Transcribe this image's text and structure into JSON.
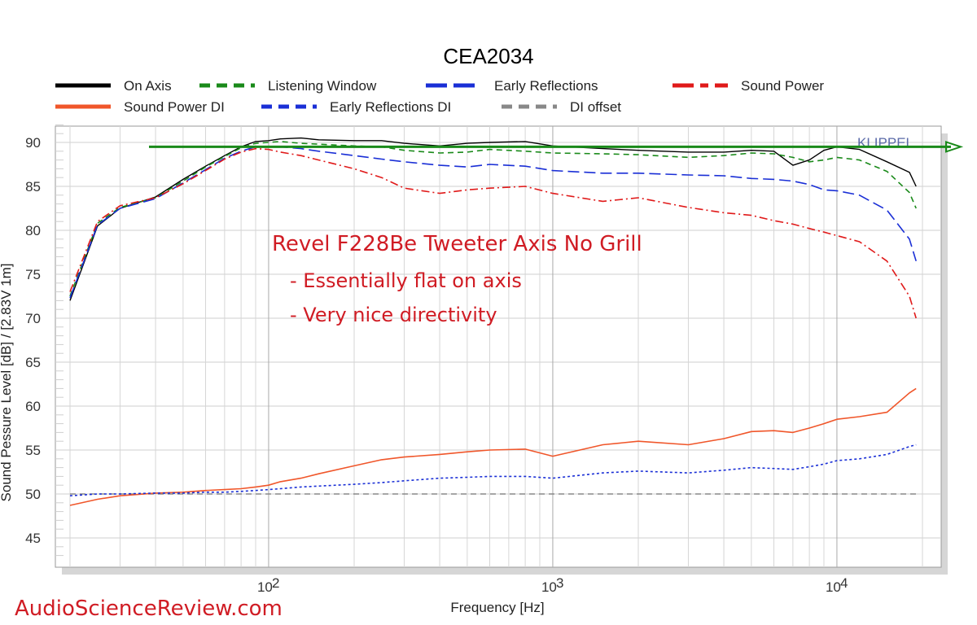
{
  "chart_data": {
    "type": "line",
    "title": "CEA2034",
    "xlabel": "Frequency [Hz]",
    "ylabel": "Sound Pessure Level [dB]  / [2.83V 1m]",
    "xscale": "log",
    "xlim": [
      20,
      20000
    ],
    "ylim": [
      42,
      92
    ],
    "y_ticks": [
      45,
      50,
      55,
      60,
      65,
      70,
      75,
      80,
      85,
      90
    ],
    "x_ticks": [
      {
        "value": 100,
        "base": "10",
        "exp": "2"
      },
      {
        "value": 1000,
        "base": "10",
        "exp": "3"
      },
      {
        "value": 10000,
        "base": "10",
        "exp": "4"
      }
    ],
    "grid": true,
    "legend_position": "top",
    "series": [
      {
        "name": "On Axis",
        "color": "#000000",
        "style": "solid",
        "x": [
          20,
          25,
          30,
          40,
          50,
          60,
          70,
          80,
          90,
          100,
          110,
          130,
          150,
          200,
          250,
          300,
          400,
          500,
          600,
          800,
          1000,
          1500,
          2000,
          3000,
          4000,
          5000,
          6000,
          7000,
          8000,
          9000,
          10000,
          12000,
          15000,
          18000,
          19000
        ],
        "y": [
          72,
          80.5,
          82.5,
          83.8,
          85.8,
          87.3,
          88.5,
          89.5,
          90.1,
          90.2,
          90.4,
          90.5,
          90.3,
          90.2,
          90.2,
          89.9,
          89.6,
          89.9,
          90.0,
          90.1,
          89.6,
          89.3,
          89.1,
          88.9,
          88.9,
          89.1,
          89.0,
          87.4,
          88.0,
          89.1,
          89.5,
          89.2,
          87.8,
          86.6,
          85
        ]
      },
      {
        "name": "Listening Window",
        "color": "#1a8a1a",
        "style": "dashed",
        "x": [
          20,
          25,
          30,
          40,
          50,
          60,
          70,
          80,
          90,
          100,
          110,
          130,
          150,
          200,
          250,
          300,
          400,
          500,
          600,
          800,
          1000,
          1500,
          2000,
          3000,
          4000,
          5000,
          6000,
          7000,
          8000,
          9000,
          10000,
          12000,
          15000,
          18000,
          19000
        ],
        "y": [
          72.5,
          80.8,
          82.6,
          83.7,
          85.6,
          87.2,
          88.4,
          89.4,
          89.9,
          90.0,
          90.1,
          89.9,
          89.8,
          89.6,
          89.5,
          89.1,
          88.8,
          88.9,
          89.2,
          89.0,
          88.8,
          88.7,
          88.6,
          88.3,
          88.5,
          88.8,
          88.7,
          88.3,
          87.8,
          88.0,
          88.3,
          88.0,
          86.7,
          84.3,
          82.5
        ]
      },
      {
        "name": "Early Reflections",
        "color": "#1a2fd6",
        "style": "longdash",
        "x": [
          20,
          25,
          30,
          40,
          50,
          60,
          70,
          80,
          90,
          100,
          110,
          130,
          150,
          200,
          250,
          300,
          400,
          500,
          600,
          800,
          1000,
          1500,
          2000,
          3000,
          4000,
          5000,
          6000,
          7000,
          8000,
          9000,
          10000,
          12000,
          15000,
          18000,
          19000
        ],
        "y": [
          72.3,
          80.6,
          82.5,
          83.6,
          85.4,
          86.9,
          88.2,
          89.0,
          89.5,
          89.5,
          89.5,
          89.3,
          89.0,
          88.5,
          88.1,
          87.8,
          87.4,
          87.2,
          87.5,
          87.3,
          86.8,
          86.5,
          86.5,
          86.3,
          86.2,
          85.9,
          85.8,
          85.6,
          85.2,
          84.6,
          84.5,
          84.0,
          82.3,
          79.0,
          76.5
        ]
      },
      {
        "name": "Sound Power",
        "color": "#e01a1a",
        "style": "dashdot",
        "x": [
          20,
          25,
          30,
          40,
          50,
          60,
          70,
          80,
          90,
          100,
          110,
          130,
          150,
          200,
          250,
          300,
          400,
          500,
          600,
          800,
          1000,
          1500,
          2000,
          3000,
          4000,
          5000,
          6000,
          7000,
          8000,
          9000,
          10000,
          12000,
          15000,
          18000,
          19000
        ],
        "y": [
          73,
          81,
          82.8,
          83.7,
          85.3,
          86.8,
          88.1,
          88.9,
          89.3,
          89.2,
          88.9,
          88.5,
          88.0,
          87.0,
          86.0,
          84.8,
          84.2,
          84.6,
          84.8,
          85.0,
          84.2,
          83.3,
          83.7,
          82.6,
          82.0,
          81.7,
          81.1,
          80.7,
          80.2,
          79.8,
          79.4,
          78.7,
          76.5,
          72.5,
          70
        ]
      },
      {
        "name": "Sound Power DI",
        "color": "#f0562a",
        "style": "solid",
        "x": [
          20,
          25,
          30,
          40,
          50,
          60,
          70,
          80,
          90,
          100,
          110,
          130,
          150,
          200,
          250,
          300,
          400,
          500,
          600,
          800,
          1000,
          1500,
          2000,
          3000,
          4000,
          5000,
          6000,
          7000,
          8000,
          9000,
          10000,
          12000,
          15000,
          18000,
          19000
        ],
        "y": [
          48.7,
          49.4,
          49.8,
          50.1,
          50.2,
          50.4,
          50.5,
          50.6,
          50.8,
          51.0,
          51.4,
          51.8,
          52.3,
          53.2,
          53.9,
          54.2,
          54.5,
          54.8,
          55.0,
          55.1,
          54.3,
          55.6,
          56.0,
          55.6,
          56.3,
          57.1,
          57.2,
          57.0,
          57.5,
          58.0,
          58.5,
          58.8,
          59.3,
          61.5,
          62
        ]
      },
      {
        "name": "Early Reflections DI",
        "color": "#1a2fd6",
        "style": "dotted",
        "x": [
          20,
          25,
          30,
          40,
          50,
          60,
          70,
          80,
          90,
          100,
          110,
          130,
          150,
          200,
          250,
          300,
          400,
          500,
          600,
          800,
          1000,
          1500,
          2000,
          3000,
          4000,
          5000,
          6000,
          7000,
          8000,
          9000,
          10000,
          12000,
          15000,
          18000,
          19000
        ],
        "y": [
          49.8,
          50.0,
          50.0,
          50.1,
          50.1,
          50.2,
          50.2,
          50.3,
          50.4,
          50.5,
          50.6,
          50.8,
          50.9,
          51.1,
          51.3,
          51.5,
          51.8,
          51.9,
          52.0,
          52.0,
          51.8,
          52.4,
          52.6,
          52.4,
          52.7,
          53.0,
          52.9,
          52.8,
          53.1,
          53.4,
          53.8,
          54.0,
          54.5,
          55.4,
          55.6
        ]
      },
      {
        "name": "DI offset",
        "color": "#888888",
        "style": "dashed",
        "x": [
          20,
          19000
        ],
        "y": [
          50,
          50
        ]
      }
    ],
    "annotations": [
      {
        "text": "Revel F228Be Tweeter Axis No Grill",
        "role": "main"
      },
      {
        "text": "- Essentially flat on axis",
        "role": "sub"
      },
      {
        "text": "- Very nice directivity",
        "role": "sub"
      }
    ],
    "reference_arrow": {
      "y": 89.5,
      "color": "#1a8a1a"
    },
    "watermark": "KLIPPEL"
  },
  "site_credit": "AudioScienceReview.com",
  "colors": {
    "annotation": "#d01c24",
    "grid": "#cfcfcf",
    "plot_border": "#9a9a9a",
    "shadow": "#d9d9d9"
  }
}
